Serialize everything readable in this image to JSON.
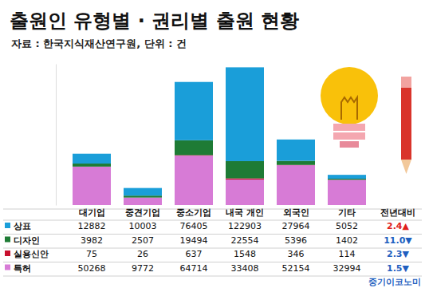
{
  "chart_data": {
    "type": "bar",
    "title": "출원인 유형별 · 권리별 출원 현황",
    "subtitle": "자료 : 한국지식재산연구원, 단위 : 건",
    "source": "중기이코노미",
    "categories": [
      "대기업",
      "중견기업",
      "중소기업",
      "내국 개인",
      "외국인",
      "기타"
    ],
    "stacked": true,
    "data_labels": true,
    "tick_labels": false,
    "ylim": [
      0,
      185000
    ],
    "yoy_header": "전년대비",
    "series": [
      {
        "name": "상표",
        "color": "#1a9ed9",
        "values": [
          12882,
          10003,
          76405,
          122903,
          27964,
          5052
        ],
        "yoy": 2.4,
        "yoy_label": "2.4▲"
      },
      {
        "name": "디자인",
        "color": "#1e7b35",
        "values": [
          3982,
          2507,
          19494,
          22554,
          5396,
          1402
        ],
        "yoy": -11.0,
        "yoy_label": "11.0▼"
      },
      {
        "name": "실용신안",
        "color": "#c8102e",
        "values": [
          75,
          26,
          637,
          1548,
          346,
          114
        ],
        "yoy": -2.3,
        "yoy_label": "2.3▼"
      },
      {
        "name": "특허",
        "color": "#d77bd6",
        "values": [
          50268,
          9772,
          64714,
          33408,
          52154,
          32994
        ],
        "yoy": -1.5,
        "yoy_label": "1.5▼"
      }
    ]
  }
}
